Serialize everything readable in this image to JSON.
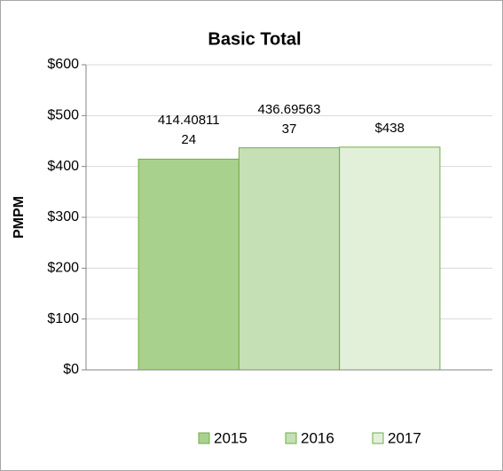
{
  "chart_data": {
    "type": "bar",
    "title": "Basic Total",
    "y_label": "PMPM",
    "categories": [
      null
    ],
    "series": [
      {
        "name": "2015",
        "color": "#a9d18e",
        "values": [
          414.4081124
        ],
        "value_labels": [
          "414.4081124"
        ]
      },
      {
        "name": "2016",
        "color": "#c5e0b4",
        "values": [
          436.6956337
        ],
        "value_labels": [
          "436.6956337"
        ]
      },
      {
        "name": "2017",
        "color": "#e2f0d9",
        "values": [
          438
        ],
        "value_labels": [
          "$438"
        ]
      }
    ],
    "ylim": [
      0,
      600
    ],
    "yticks": [
      {
        "value": 0,
        "label": "$0"
      },
      {
        "value": 100,
        "label": "$100"
      },
      {
        "value": 200,
        "label": "$200"
      },
      {
        "value": 300,
        "label": "$300"
      },
      {
        "value": 400,
        "label": "$400"
      },
      {
        "value": 500,
        "label": "$500"
      },
      {
        "value": 600,
        "label": "$600"
      }
    ],
    "grid": true,
    "legend": "bottom"
  }
}
